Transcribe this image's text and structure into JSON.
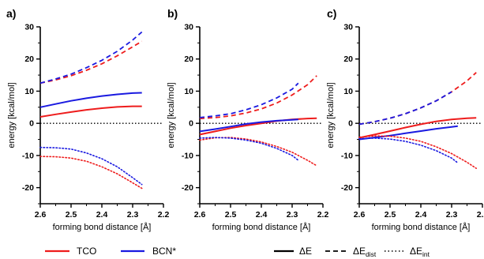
{
  "colors": {
    "TCO": "#ee1c1c",
    "BCN*": "#1a1ae0",
    "zero_line": "#000000"
  },
  "legend": {
    "systems": [
      {
        "name": "TCO",
        "color": "#ee1c1c"
      },
      {
        "name": "BCN*",
        "color": "#1a1ae0"
      }
    ],
    "terms": [
      {
        "label": "ΔE",
        "style": "solid"
      },
      {
        "label": "ΔE",
        "sub": "dist",
        "style": "dashed"
      },
      {
        "label": "ΔE",
        "sub": "int",
        "style": "dotted"
      }
    ]
  },
  "chart_data": [
    {
      "type": "line",
      "panel_label": "a)",
      "xlabel": "forming bond distance [Å]",
      "ylabel": "energy [kcal/mol]",
      "xlim": [
        2.6,
        2.2
      ],
      "x_reversed": true,
      "ylim": [
        -25,
        30
      ],
      "xticks": [
        "2.6",
        "2.5",
        "2.4",
        "2.3",
        "2.2"
      ],
      "yticks": [
        "30",
        "20",
        "10",
        "0",
        "-10",
        "-20"
      ],
      "zero_line": "dotted",
      "series": [
        {
          "name": "TCO",
          "term": "ΔE",
          "style": "solid",
          "x": [
            2.6,
            2.55,
            2.5,
            2.45,
            2.4,
            2.35,
            2.3,
            2.27
          ],
          "y": [
            2.0,
            2.8,
            3.5,
            4.2,
            4.7,
            5.1,
            5.3,
            5.3
          ]
        },
        {
          "name": "BCN*",
          "term": "ΔE",
          "style": "solid",
          "x": [
            2.6,
            2.55,
            2.5,
            2.45,
            2.4,
            2.35,
            2.3,
            2.27
          ],
          "y": [
            5.0,
            6.0,
            7.0,
            7.8,
            8.5,
            9.0,
            9.4,
            9.5
          ]
        },
        {
          "name": "TCO",
          "term": "ΔE_dist",
          "style": "dashed",
          "x": [
            2.6,
            2.55,
            2.5,
            2.45,
            2.4,
            2.35,
            2.3,
            2.27
          ],
          "y": [
            12.5,
            13.5,
            14.8,
            16.5,
            18.5,
            21.0,
            23.8,
            25.5
          ]
        },
        {
          "name": "BCN*",
          "term": "ΔE_dist",
          "style": "dashed",
          "x": [
            2.6,
            2.55,
            2.5,
            2.45,
            2.4,
            2.35,
            2.3,
            2.27
          ],
          "y": [
            12.5,
            13.8,
            15.3,
            17.3,
            19.6,
            22.4,
            25.9,
            28.4
          ]
        },
        {
          "name": "TCO",
          "term": "ΔE_int",
          "style": "dotted",
          "x": [
            2.6,
            2.55,
            2.5,
            2.45,
            2.4,
            2.35,
            2.3,
            2.27
          ],
          "y": [
            -10.3,
            -10.4,
            -10.8,
            -11.8,
            -13.5,
            -15.7,
            -18.5,
            -20.2
          ]
        },
        {
          "name": "BCN*",
          "term": "ΔE_int",
          "style": "dotted",
          "x": [
            2.6,
            2.55,
            2.5,
            2.45,
            2.4,
            2.35,
            2.3,
            2.27
          ],
          "y": [
            -7.5,
            -7.6,
            -8.0,
            -9.2,
            -11.0,
            -13.5,
            -16.9,
            -19.0
          ]
        }
      ]
    },
    {
      "type": "line",
      "panel_label": "b)",
      "xlabel": "forming bond distance [Å]",
      "ylabel": "energy [kcal/mol]",
      "xlim": [
        2.6,
        2.2
      ],
      "x_reversed": true,
      "ylim": [
        -25,
        30
      ],
      "xticks": [
        "2.6",
        "2.5",
        "2.4",
        "2.3",
        "2.2"
      ],
      "yticks": [
        "30",
        "20",
        "10",
        "0",
        "-10",
        "-20"
      ],
      "zero_line": "dotted",
      "series": [
        {
          "name": "TCO",
          "term": "ΔE",
          "style": "solid",
          "x": [
            2.6,
            2.55,
            2.5,
            2.45,
            2.4,
            2.35,
            2.3,
            2.25,
            2.22
          ],
          "y": [
            -3.5,
            -2.5,
            -1.5,
            -0.7,
            0.0,
            0.7,
            1.2,
            1.5,
            1.6
          ]
        },
        {
          "name": "BCN*",
          "term": "ΔE",
          "style": "solid",
          "x": [
            2.6,
            2.55,
            2.5,
            2.45,
            2.4,
            2.35,
            2.3,
            2.28
          ],
          "y": [
            -2.5,
            -1.8,
            -1.0,
            -0.2,
            0.4,
            0.8,
            1.1,
            1.2
          ]
        },
        {
          "name": "TCO",
          "term": "ΔE_dist",
          "style": "dashed",
          "x": [
            2.6,
            2.55,
            2.5,
            2.45,
            2.4,
            2.35,
            2.3,
            2.25,
            2.22
          ],
          "y": [
            1.5,
            1.8,
            2.3,
            3.2,
            4.5,
            6.3,
            8.8,
            12.0,
            14.8
          ]
        },
        {
          "name": "BCN*",
          "term": "ΔE_dist",
          "style": "dashed",
          "x": [
            2.6,
            2.55,
            2.5,
            2.45,
            2.4,
            2.35,
            2.3,
            2.28
          ],
          "y": [
            1.8,
            2.3,
            3.0,
            4.2,
            5.8,
            7.9,
            10.6,
            12.5
          ]
        },
        {
          "name": "TCO",
          "term": "ΔE_int",
          "style": "dotted",
          "x": [
            2.6,
            2.55,
            2.5,
            2.45,
            2.4,
            2.35,
            2.3,
            2.25,
            2.22
          ],
          "y": [
            -5.2,
            -4.5,
            -4.4,
            -4.9,
            -5.8,
            -7.2,
            -9.0,
            -11.5,
            -13.2
          ]
        },
        {
          "name": "BCN*",
          "term": "ΔE_int",
          "style": "dotted",
          "x": [
            2.6,
            2.55,
            2.5,
            2.45,
            2.4,
            2.35,
            2.3,
            2.28
          ],
          "y": [
            -4.6,
            -4.4,
            -4.6,
            -5.2,
            -6.2,
            -7.8,
            -10.0,
            -11.5
          ]
        }
      ]
    },
    {
      "type": "line",
      "panel_label": "c)",
      "xlabel": "forming bond distance [Å]",
      "ylabel": "energy [kcal/mol]",
      "xlim": [
        2.6,
        2.2
      ],
      "x_reversed": true,
      "ylim": [
        -25,
        30
      ],
      "xticks": [
        "2.6",
        "2.5",
        "2.4",
        "2.3",
        "2.2"
      ],
      "yticks": [
        "30",
        "20",
        "10",
        "0",
        "-10",
        "-20"
      ],
      "zero_line": "dotted",
      "series": [
        {
          "name": "TCO",
          "term": "ΔE",
          "style": "solid",
          "x": [
            2.6,
            2.55,
            2.5,
            2.45,
            2.4,
            2.35,
            2.3,
            2.25,
            2.22
          ],
          "y": [
            -4.5,
            -3.5,
            -2.4,
            -1.3,
            -0.3,
            0.6,
            1.2,
            1.6,
            1.7
          ]
        },
        {
          "name": "BCN*",
          "term": "ΔE",
          "style": "solid",
          "x": [
            2.6,
            2.55,
            2.5,
            2.45,
            2.4,
            2.35,
            2.3,
            2.28
          ],
          "y": [
            -5.0,
            -4.4,
            -3.8,
            -3.1,
            -2.4,
            -1.7,
            -1.1,
            -0.9
          ]
        },
        {
          "name": "TCO",
          "term": "ΔE_dist",
          "style": "dashed",
          "x": [
            2.6,
            2.55,
            2.5,
            2.45,
            2.4,
            2.35,
            2.3,
            2.25,
            2.22
          ],
          "y": [
            -0.3,
            0.5,
            1.6,
            3.0,
            4.8,
            7.0,
            9.8,
            13.2,
            15.8
          ]
        },
        {
          "name": "BCN*",
          "term": "ΔE_dist",
          "style": "dashed",
          "x": [
            2.6,
            2.55,
            2.5,
            2.45,
            2.4,
            2.35,
            2.3
          ],
          "y": [
            -0.3,
            0.5,
            1.6,
            3.0,
            4.8,
            7.0,
            9.8
          ]
        },
        {
          "name": "TCO",
          "term": "ΔE_int",
          "style": "dotted",
          "x": [
            2.6,
            2.55,
            2.5,
            2.45,
            2.4,
            2.35,
            2.3,
            2.25,
            2.22
          ],
          "y": [
            -4.3,
            -3.9,
            -4.0,
            -4.6,
            -5.6,
            -7.3,
            -9.4,
            -12.1,
            -14.0
          ]
        },
        {
          "name": "BCN*",
          "term": "ΔE_int",
          "style": "dotted",
          "x": [
            2.6,
            2.55,
            2.5,
            2.45,
            2.4,
            2.35,
            2.3,
            2.28
          ],
          "y": [
            -4.8,
            -4.6,
            -4.9,
            -5.6,
            -6.8,
            -8.5,
            -10.8,
            -12.3
          ]
        }
      ]
    }
  ]
}
